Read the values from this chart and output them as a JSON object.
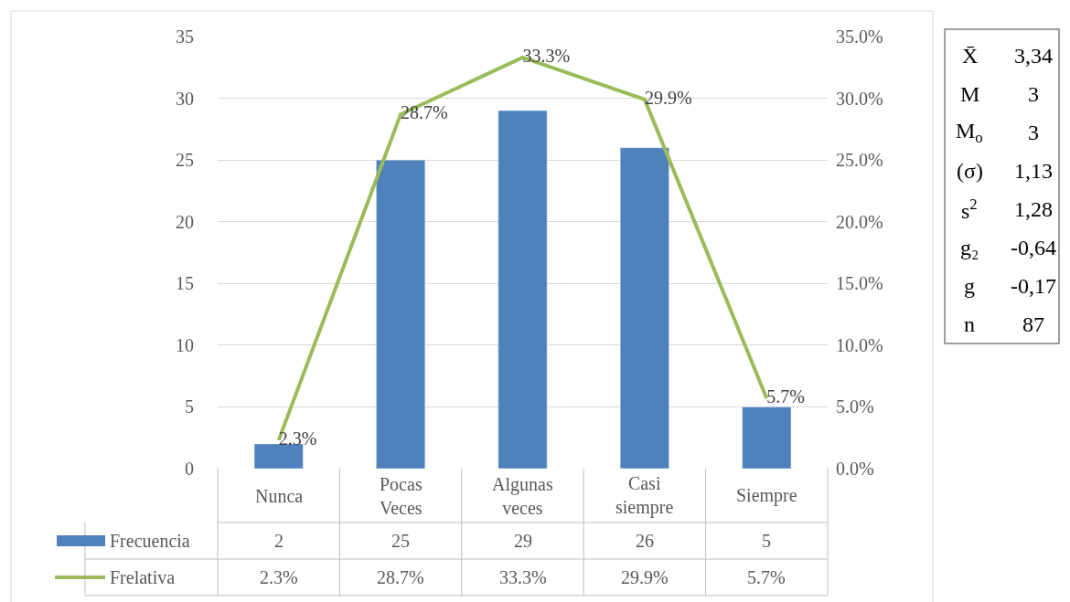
{
  "chart_data": {
    "type": "bar",
    "categories": [
      "Nunca",
      "Pocas Veces",
      "Algunas veces",
      "Casi siempre",
      "Siempre"
    ],
    "series": [
      {
        "name": "Frecuencia",
        "color": "#4f81bd",
        "values": [
          2,
          25,
          29,
          26,
          5
        ]
      },
      {
        "name": "Frelativa",
        "type": "line",
        "axis": "y2",
        "color": "#9bbb59",
        "values": [
          2.3,
          28.7,
          33.3,
          29.9,
          5.7
        ],
        "value_labels": [
          "2.3%",
          "28.7%",
          "33.3%",
          "29.9%",
          "5.7%"
        ]
      }
    ],
    "ylim": [
      0,
      35
    ],
    "yticks": [
      0,
      5,
      10,
      15,
      20,
      25,
      30,
      35
    ],
    "y2lim": [
      0,
      35
    ],
    "y2ticks": [
      {
        "value": 0,
        "label": "0.0%"
      },
      {
        "value": 5,
        "label": "5.0%"
      },
      {
        "value": 10,
        "label": "10.0%"
      },
      {
        "value": 15,
        "label": "15.0%"
      },
      {
        "value": 20,
        "label": "20.0%"
      },
      {
        "value": 25,
        "label": "25.0%"
      },
      {
        "value": 30,
        "label": "30.0%"
      },
      {
        "value": 35,
        "label": "35.0%"
      }
    ],
    "grid": "y",
    "legend": "bottom",
    "data_labels": true,
    "marker": "none",
    "line_style": "solid",
    "annotations": [
      "X̄",
      "3,34",
      "M",
      "3",
      "M$_{o}$",
      "3",
      "(σ)",
      "1,13",
      "s$^{2}$",
      "1,28",
      "g₂",
      "-0,64",
      "g",
      "-0,17",
      "n",
      "87"
    ]
  }
}
